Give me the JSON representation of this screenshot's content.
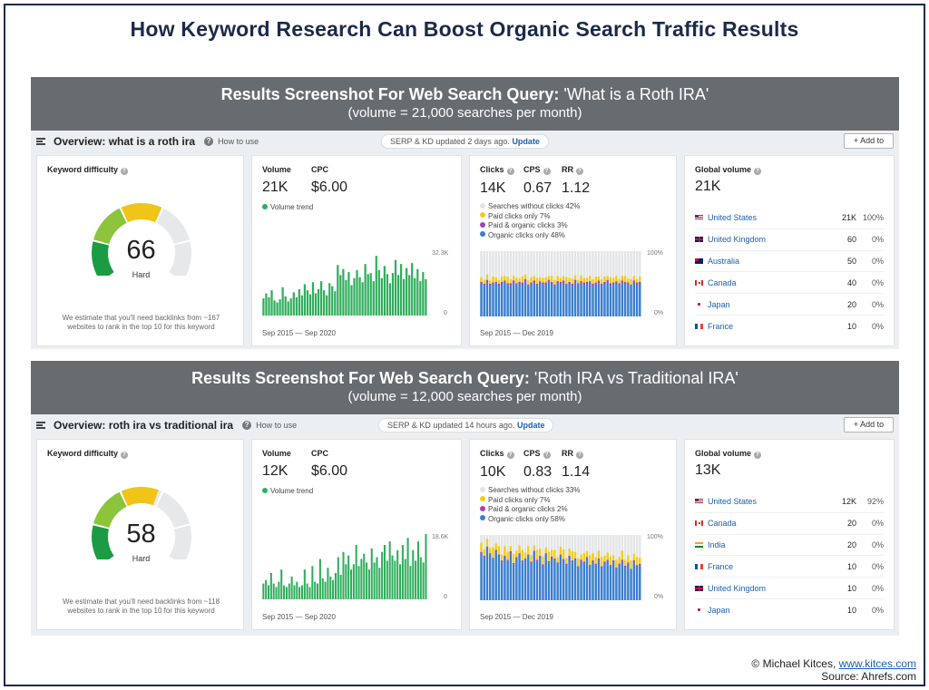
{
  "title": "How Keyword Research Can Boost Organic Search Traffic Results",
  "colors": {
    "navy": "#1b2a4a",
    "banner": "#676c70",
    "green_bar": "#2fae5b",
    "gauge_green": "#1c9b45",
    "gauge_lime": "#8cc43c",
    "gauge_yellow": "#f0c419",
    "gauge_gray": "#e6e8ea",
    "clicks_blue": "#3a7fd0",
    "clicks_yellow": "#f2cc1a",
    "clicks_purple": "#a042b8",
    "clicks_gray": "#e2e4e6",
    "link": "#1a5fb4"
  },
  "sections": [
    {
      "banner_bold": "Results Screenshot  For Web Search Query:",
      "banner_query": " 'What is a Roth IRA'",
      "banner_sub": "(volume = 21,000 searches per month)",
      "overview_title": "Overview: what is a roth ira",
      "how_to": "How to use",
      "serp_text": "SERP & KD updated 2 days ago.",
      "serp_link": "Update",
      "add_to": "+ Add to",
      "kd": {
        "label": "Keyword difficulty",
        "value": 66,
        "word": "Hard",
        "note": "We estimate that you'll need backlinks from ~167 websites to rank in the top 10 for this keyword"
      },
      "volume": {
        "label": "Volume",
        "value": "21K",
        "cpc_label": "CPC",
        "cpc_value": "$6.00",
        "trend_label": "Volume trend",
        "axis_max": "32.3K",
        "axis_min": "0",
        "range": "Sep 2015 — Sep 2020"
      },
      "clicks": {
        "clicks_label": "Clicks",
        "clicks_value": "14K",
        "cps_label": "CPS",
        "cps_value": "0.67",
        "rr_label": "RR",
        "rr_value": "1.12",
        "legend": [
          "Searches without clicks 42%",
          "Paid clicks only 7%",
          "Paid & organic clicks 3%",
          "Organic clicks only 48%"
        ],
        "axis_max": "100%",
        "axis_min": "0%",
        "range": "Sep 2015 — Dec 2019"
      },
      "global": {
        "label": "Global volume",
        "value": "21K",
        "countries": [
          {
            "name": "United States",
            "vol": "21K",
            "pct": "100%",
            "flag": "us"
          },
          {
            "name": "United Kingdom",
            "vol": "60",
            "pct": "0%",
            "flag": "uk"
          },
          {
            "name": "Australia",
            "vol": "50",
            "pct": "0%",
            "flag": "au"
          },
          {
            "name": "Canada",
            "vol": "40",
            "pct": "0%",
            "flag": "ca"
          },
          {
            "name": "Japan",
            "vol": "20",
            "pct": "0%",
            "flag": "jp"
          },
          {
            "name": "France",
            "vol": "10",
            "pct": "0%",
            "flag": "fr"
          }
        ]
      }
    },
    {
      "banner_bold": "Results Screenshot  For Web Search Query:",
      "banner_query": " 'Roth IRA vs Traditional IRA'",
      "banner_sub": "(volume = 12,000 searches per month)",
      "overview_title": "Overview: roth ira vs traditional ira",
      "how_to": "How to use",
      "serp_text": "SERP & KD updated 14 hours ago.",
      "serp_link": "Update",
      "add_to": "+ Add to",
      "kd": {
        "label": "Keyword difficulty",
        "value": 58,
        "word": "Hard",
        "note": "We estimate that you'll need backlinks from ~118 websites to rank in the top 10 for this keyword"
      },
      "volume": {
        "label": "Volume",
        "value": "12K",
        "cpc_label": "CPC",
        "cpc_value": "$6.00",
        "trend_label": "Volume trend",
        "axis_max": "18.6K",
        "axis_min": "0",
        "range": "Sep 2015 — Sep 2020"
      },
      "clicks": {
        "clicks_label": "Clicks",
        "clicks_value": "10K",
        "cps_label": "CPS",
        "cps_value": "0.83",
        "rr_label": "RR",
        "rr_value": "1.14",
        "legend": [
          "Searches without clicks 33%",
          "Paid clicks only 7%",
          "Paid & organic clicks 2%",
          "Organic clicks only 58%"
        ],
        "axis_max": "100%",
        "axis_min": "0%",
        "range": "Sep 2015 — Dec 2019"
      },
      "global": {
        "label": "Global volume",
        "value": "13K",
        "countries": [
          {
            "name": "United States",
            "vol": "12K",
            "pct": "92%",
            "flag": "us"
          },
          {
            "name": "Canada",
            "vol": "20",
            "pct": "0%",
            "flag": "ca"
          },
          {
            "name": "India",
            "vol": "20",
            "pct": "0%",
            "flag": "in"
          },
          {
            "name": "France",
            "vol": "10",
            "pct": "0%",
            "flag": "fr"
          },
          {
            "name": "United Kingdom",
            "vol": "10",
            "pct": "0%",
            "flag": "uk"
          },
          {
            "name": "Japan",
            "vol": "10",
            "pct": "0%",
            "flag": "jp"
          }
        ]
      }
    }
  ],
  "chart_data": [
    {
      "type": "bar",
      "title": "Volume trend",
      "section": 1,
      "ylim": [
        0,
        32300
      ],
      "x_range": [
        "Sep 2015",
        "Sep 2020"
      ],
      "values": [
        8500,
        11000,
        9000,
        12500,
        7500,
        6500,
        8000,
        14000,
        9500,
        7000,
        8500,
        11500,
        9000,
        13000,
        10000,
        15500,
        12500,
        10500,
        16500,
        11000,
        13000,
        17000,
        12500,
        10000,
        16000,
        14500,
        12000,
        25000,
        20000,
        23000,
        17500,
        21500,
        15000,
        18500,
        22500,
        19000,
        16500,
        25500,
        20500,
        21000,
        17000,
        29500,
        22500,
        18500,
        24500,
        20500,
        16000,
        21000,
        27500,
        20000,
        25500,
        18000,
        23500,
        20000,
        26000,
        18500,
        23000,
        17000,
        21500,
        18000
      ]
    },
    {
      "type": "bar",
      "title": "Clicks",
      "section": 1,
      "ylim": [
        0,
        100
      ],
      "x_range": [
        "Sep 2015",
        "Dec 2019"
      ],
      "series": [
        {
          "name": "Organic clicks only",
          "values": [
            50,
            48,
            52,
            47,
            49,
            51,
            46,
            50,
            53,
            48,
            47,
            52,
            49,
            50,
            48,
            54,
            46,
            50,
            51,
            47,
            52,
            49,
            48,
            53,
            50,
            47,
            51,
            49,
            52,
            48,
            50,
            46,
            53,
            49,
            51,
            48,
            50,
            52,
            47,
            49,
            51,
            48,
            50,
            53,
            47,
            49,
            52,
            48,
            51,
            50,
            49,
            47,
            52,
            48,
            50
          ]
        },
        {
          "name": "Paid & organic clicks",
          "values": [
            3,
            2,
            4,
            3,
            3,
            2,
            4,
            3,
            2,
            3,
            4,
            3,
            2,
            3,
            4,
            3,
            3,
            2,
            4,
            3,
            2,
            3,
            4,
            3,
            3,
            2,
            3,
            4,
            3,
            2,
            3,
            4,
            3,
            2,
            3,
            4,
            3,
            2,
            3,
            3,
            4,
            2,
            3,
            3,
            4,
            3,
            2,
            3,
            4,
            3,
            3,
            2,
            3,
            4,
            3
          ]
        },
        {
          "name": "Paid clicks only",
          "values": [
            7,
            6,
            8,
            5,
            9,
            7,
            6,
            8,
            7,
            10,
            6,
            7,
            8,
            5,
            9,
            7,
            6,
            8,
            7,
            9,
            6,
            7,
            8,
            6,
            9,
            7,
            8,
            6,
            7,
            10,
            6,
            8,
            7,
            5,
            9,
            7,
            6,
            8,
            7,
            9,
            6,
            7,
            8,
            6,
            9,
            7,
            8,
            6,
            7,
            9,
            6,
            8,
            7,
            5,
            8
          ]
        }
      ]
    },
    {
      "type": "bar",
      "title": "Volume trend",
      "section": 2,
      "ylim": [
        0,
        18600
      ],
      "x_range": [
        "Sep 2015",
        "Sep 2020"
      ],
      "values": [
        4500,
        5500,
        4000,
        7500,
        4500,
        3500,
        5000,
        8500,
        4000,
        3500,
        4500,
        6500,
        4000,
        5000,
        3500,
        4000,
        8500,
        4500,
        3500,
        9500,
        5000,
        4500,
        11500,
        6000,
        5000,
        9000,
        6500,
        5500,
        7500,
        12000,
        7000,
        13500,
        10000,
        12500,
        8500,
        10000,
        15500,
        9500,
        11500,
        13000,
        10500,
        8500,
        14500,
        10500,
        12000,
        9000,
        13500,
        15500,
        11000,
        16500,
        12500,
        11000,
        14000,
        10000,
        15500,
        11500,
        17500,
        9500,
        14000,
        11000,
        16500,
        12000,
        10500,
        18600
      ]
    },
    {
      "type": "bar",
      "title": "Clicks",
      "section": 2,
      "ylim": [
        0,
        100
      ],
      "x_range": [
        "Sep 2015",
        "Dec 2019"
      ],
      "series": [
        {
          "name": "Organic clicks only",
          "values": [
            72,
            65,
            80,
            70,
            62,
            75,
            68,
            58,
            66,
            60,
            72,
            55,
            64,
            70,
            58,
            62,
            68,
            56,
            74,
            60,
            66,
            52,
            70,
            58,
            64,
            62,
            56,
            68,
            60,
            54,
            66,
            58,
            62,
            50,
            60,
            56,
            64,
            52,
            58,
            54,
            62,
            50,
            56,
            60,
            52,
            58,
            48,
            54,
            60,
            50,
            56,
            46,
            58,
            52,
            54
          ]
        },
        {
          "name": "Paid & organic clicks",
          "values": [
            2,
            3,
            2,
            2,
            3,
            2,
            2,
            3,
            2,
            2,
            3,
            2,
            2,
            2,
            3,
            2,
            2,
            3,
            2,
            2,
            2,
            3,
            2,
            2,
            3,
            2,
            2,
            2,
            3,
            2,
            2,
            3,
            2,
            2,
            2,
            3,
            2,
            2,
            3,
            2,
            2,
            2,
            3,
            2,
            2,
            3,
            2,
            2,
            2,
            3,
            2,
            2,
            3,
            2,
            2
          ]
        },
        {
          "name": "Paid clicks only",
          "values": [
            14,
            10,
            12,
            8,
            16,
            10,
            13,
            9,
            15,
            12,
            8,
            14,
            10,
            12,
            16,
            9,
            13,
            10,
            8,
            15,
            11,
            12,
            9,
            14,
            10,
            13,
            8,
            12,
            15,
            9,
            11,
            14,
            10,
            12,
            8,
            13,
            9,
            15,
            11,
            10,
            12,
            14,
            9,
            11,
            13,
            8,
            12,
            10,
            14,
            9,
            11,
            13,
            10,
            12,
            9
          ]
        }
      ]
    }
  ],
  "credit_line1": "© Michael Kitces, ",
  "credit_link": "www.kitces.com",
  "credit_line2": "Source: Ahrefs.com"
}
